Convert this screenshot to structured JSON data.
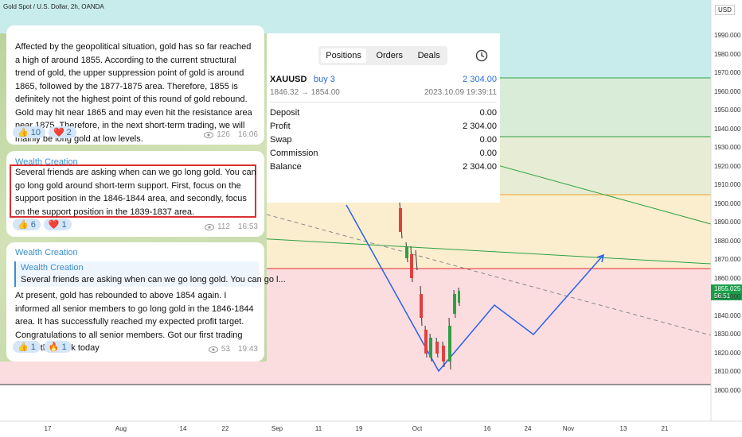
{
  "header": {
    "symbol": "Gold Spot / U.S. Dollar, 2h, OANDA"
  },
  "price_axis": {
    "currency": "USD",
    "labels": [
      "1990.000",
      "1980.000",
      "1970.000",
      "1960.000",
      "1950.000",
      "1940.000",
      "1930.000",
      "1920.000",
      "1910.000",
      "1900.000",
      "1890.000",
      "1880.000",
      "1870.000",
      "1860.000",
      "1850.000",
      "1840.000",
      "1830.000",
      "1820.000",
      "1810.000",
      "1800.000"
    ],
    "current_price": "1855.025",
    "countdown": "56:51"
  },
  "time_axis": {
    "labels": [
      "17",
      "Aug",
      "14",
      "22",
      "Sep",
      "11",
      "19",
      "Oct",
      "16",
      "24",
      "Nov",
      "13",
      "21"
    ]
  },
  "trade_panel": {
    "tabs": [
      "Positions",
      "Orders",
      "Deals"
    ],
    "symbol": "XAUUSD",
    "side": "buy 3",
    "pnl": "2 304.00",
    "prices": "1846.32 → 1854.00",
    "time": "2023.10.09 19:39:11",
    "rows": [
      [
        "Deposit",
        "0.00"
      ],
      [
        "Profit",
        "2 304.00"
      ],
      [
        "Swap",
        "0.00"
      ],
      [
        "Commission",
        "0.00"
      ],
      [
        "Balance",
        "2 304.00"
      ]
    ]
  },
  "messages": [
    {
      "text": "Affected by the geopolitical situation, gold has so far reached a high of around 1855. According to the current structural trend of gold, the upper suppression point of gold is around 1865, followed by the 1877-1875 area. Therefore, 1855 is definitely not the highest point of this round of gold rebound. Gold may hit near 1865 and may even hit the resistance area near 1875. Therefore, in the next short-term trading, we will mainly be long gold at low levels.",
      "reactions": [
        {
          "emoji": "👍",
          "count": "10"
        },
        {
          "emoji": "❤️",
          "count": "2"
        }
      ],
      "views": "126",
      "time": "16:06"
    },
    {
      "author": "Wealth Creation",
      "text": "Several friends are asking when can we go long gold. You can go long gold around short-term support. First, focus on the support position in the 1846-1844 area, and secondly, focus on the support position in the 1839-1837 area.",
      "reactions": [
        {
          "emoji": "👍",
          "count": "6"
        },
        {
          "emoji": "❤️",
          "count": "1"
        }
      ],
      "views": "112",
      "time": "16:53"
    },
    {
      "author": "Wealth Creation",
      "reply": {
        "author": "Wealth Creation",
        "text": "Several friends are asking when can we go long gold. You can go l..."
      },
      "text": "At present, gold has rebounded to above 1854 again. I informed all senior members to go long gold in the 1846-1844 area. It has successfully reached my expected profit target. Congratulations to all senior members. Got our first trading win of the week today",
      "reactions": [
        {
          "emoji": "👍",
          "count": "1"
        },
        {
          "emoji": "🔥",
          "count": "1"
        }
      ],
      "views": "53",
      "time": "19:43"
    }
  ]
}
